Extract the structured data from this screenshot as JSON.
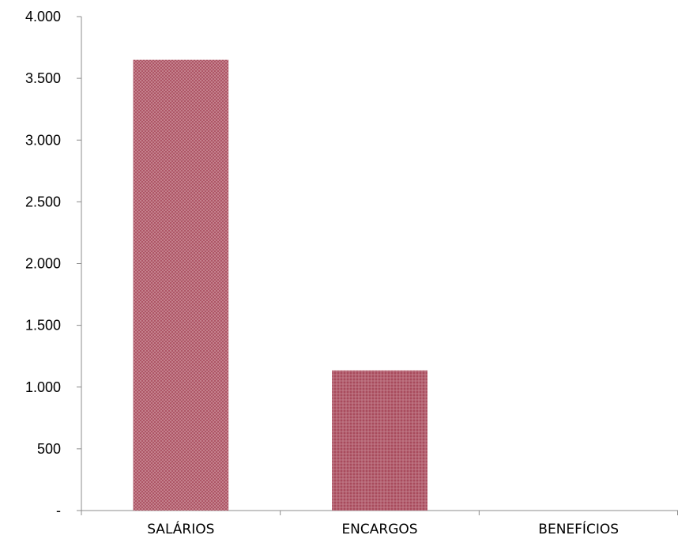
{
  "chart_data": {
    "type": "bar",
    "categories": [
      "SALÁRIOS",
      "ENCARGOS",
      "BENEFÍCIOS"
    ],
    "values": [
      3650,
      1135,
      0
    ],
    "ylim": [
      0,
      4000
    ],
    "yticks": [
      {
        "value": 0,
        "label": "-"
      },
      {
        "value": 500,
        "label": "500"
      },
      {
        "value": 1000,
        "label": "1.000"
      },
      {
        "value": 1500,
        "label": "1.500"
      },
      {
        "value": 2000,
        "label": "2.000"
      },
      {
        "value": 2500,
        "label": "2.500"
      },
      {
        "value": 3000,
        "label": "3.000"
      },
      {
        "value": 3500,
        "label": "3.500"
      },
      {
        "value": 4000,
        "label": "4.000"
      }
    ],
    "grid": false,
    "legend": "none",
    "colors": {
      "bar_fill": "#a84b5c",
      "bar_pattern": "#c98a96",
      "axis": "#8c8c8c"
    }
  }
}
